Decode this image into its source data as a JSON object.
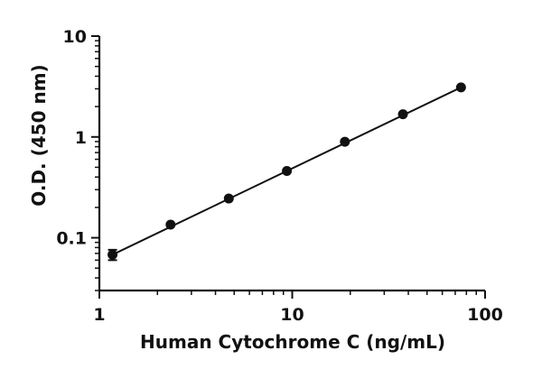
{
  "chart_data": {
    "type": "scatter",
    "title": "",
    "xlabel": "Human Cytochrome C (ng/mL)",
    "ylabel": "O.D. (450 nm)",
    "xscale": "log",
    "yscale": "log",
    "xlim": [
      1,
      100
    ],
    "ylim": [
      0.03,
      10
    ],
    "x_ticks": [
      {
        "value": 1,
        "label": "1"
      },
      {
        "value": 10,
        "label": "10"
      },
      {
        "value": 100,
        "label": "100"
      }
    ],
    "y_ticks": [
      {
        "value": 0.1,
        "label": "0.1"
      },
      {
        "value": 1,
        "label": "1"
      },
      {
        "value": 10,
        "label": "10"
      }
    ],
    "grid": false,
    "legend": "none",
    "point_color": "#111111",
    "series": [
      {
        "x": [
          1.17,
          2.34,
          4.69,
          9.38,
          18.75,
          37.5,
          75
        ],
        "y": [
          0.068,
          0.135,
          0.245,
          0.46,
          0.895,
          1.68,
          3.1
        ],
        "y_err": [
          0.008,
          0.004,
          0.004,
          0.005,
          0.01,
          0.015,
          0.03
        ]
      }
    ],
    "fit_line": {
      "x": [
        1.17,
        75
      ],
      "y": [
        0.068,
        3.1
      ]
    }
  }
}
